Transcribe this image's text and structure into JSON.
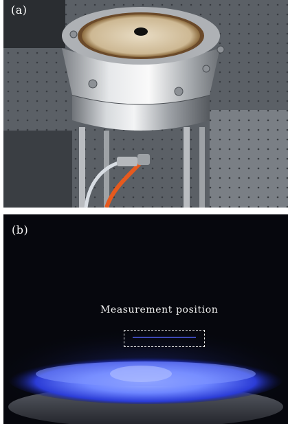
{
  "figure": {
    "panel_a": {
      "label": "(a)",
      "image": "burner-hardware-photo"
    },
    "panel_b": {
      "label": "(b)",
      "image": "blue-flame-photo",
      "annotation": "Measurement position"
    }
  },
  "colors": {
    "flame_core": "#6e86ff",
    "flame_edge": "#2b3cd6",
    "background_dark": "#06070d",
    "metal": "#c9ccd0",
    "hose": "#e65a1e"
  }
}
